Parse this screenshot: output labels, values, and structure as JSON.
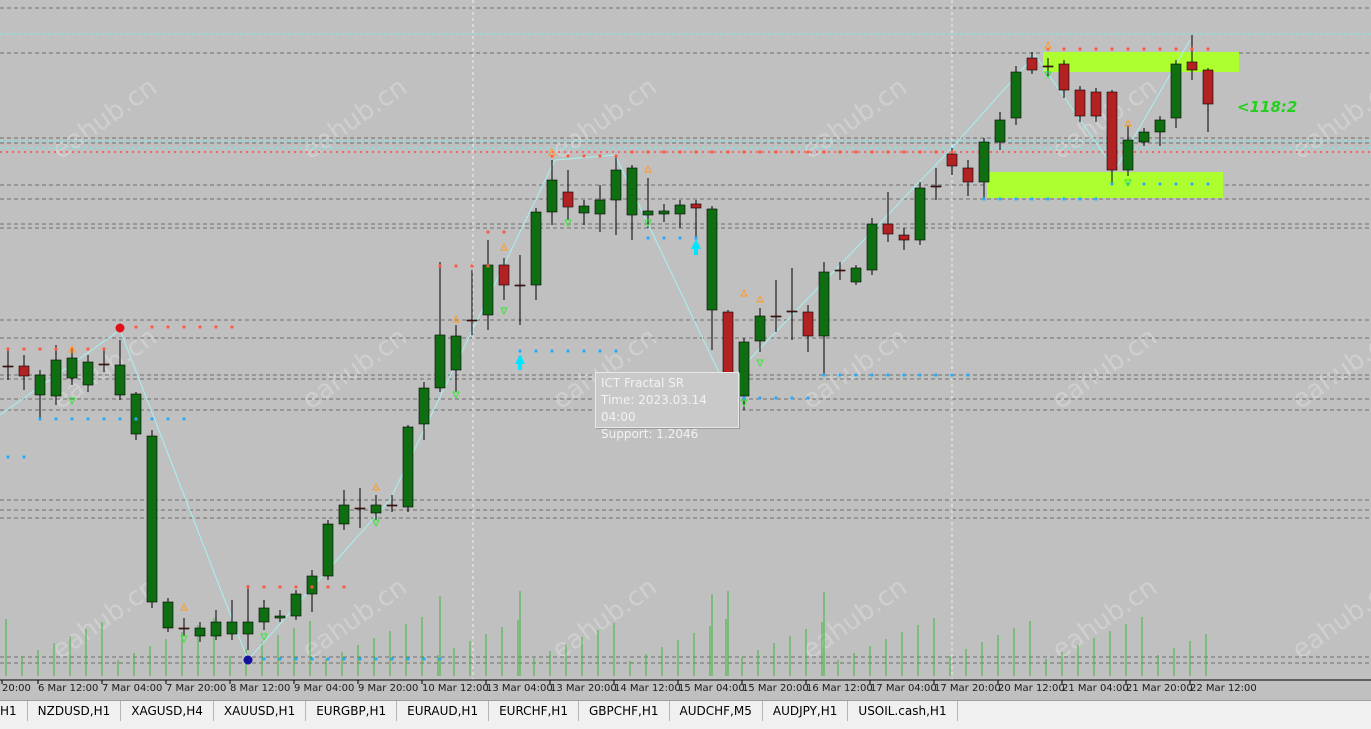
{
  "chart": {
    "time_labels": [
      "20:00",
      "6 Mar 12:00",
      "7 Mar 04:00",
      "7 Mar 20:00",
      "8 Mar 12:00",
      "9 Mar 04:00",
      "9 Mar 20:00",
      "10 Mar 12:00",
      "13 Mar 04:00",
      "13 Mar 20:00",
      "14 Mar 12:00",
      "15 Mar 04:00",
      "15 Mar 20:00",
      "16 Mar 12:00",
      "17 Mar 04:00",
      "17 Mar 20:00",
      "20 Mar 12:00",
      "21 Mar 04:00",
      "21 Mar 20:00",
      "22 Mar 12:00"
    ],
    "risk_reward_label": "<118:2",
    "watermark": "eahub.cn",
    "colors": {
      "background": "#c0c0c0",
      "bull": "#0f6e12",
      "bear": "#b32222",
      "zone": "#adff2f",
      "volume": "#3cb93c",
      "fractal_line": "#a6f2f2"
    }
  },
  "tooltip": {
    "title": "ICT Fractal SR",
    "time": "Time: 2023.03.14 04:00",
    "support": "Support: 1.2046"
  },
  "tabs": [
    "H1",
    "NZDUSD,H1",
    "XAGUSD,H4",
    "XAUUSD,H1",
    "EURGBP,H1",
    "EURAUD,H1",
    "EURCHF,H1",
    "GBPCHF,H1",
    "AUDCHF,M5",
    "AUDJPY,H1",
    "USOIL.cash,H1"
  ]
}
